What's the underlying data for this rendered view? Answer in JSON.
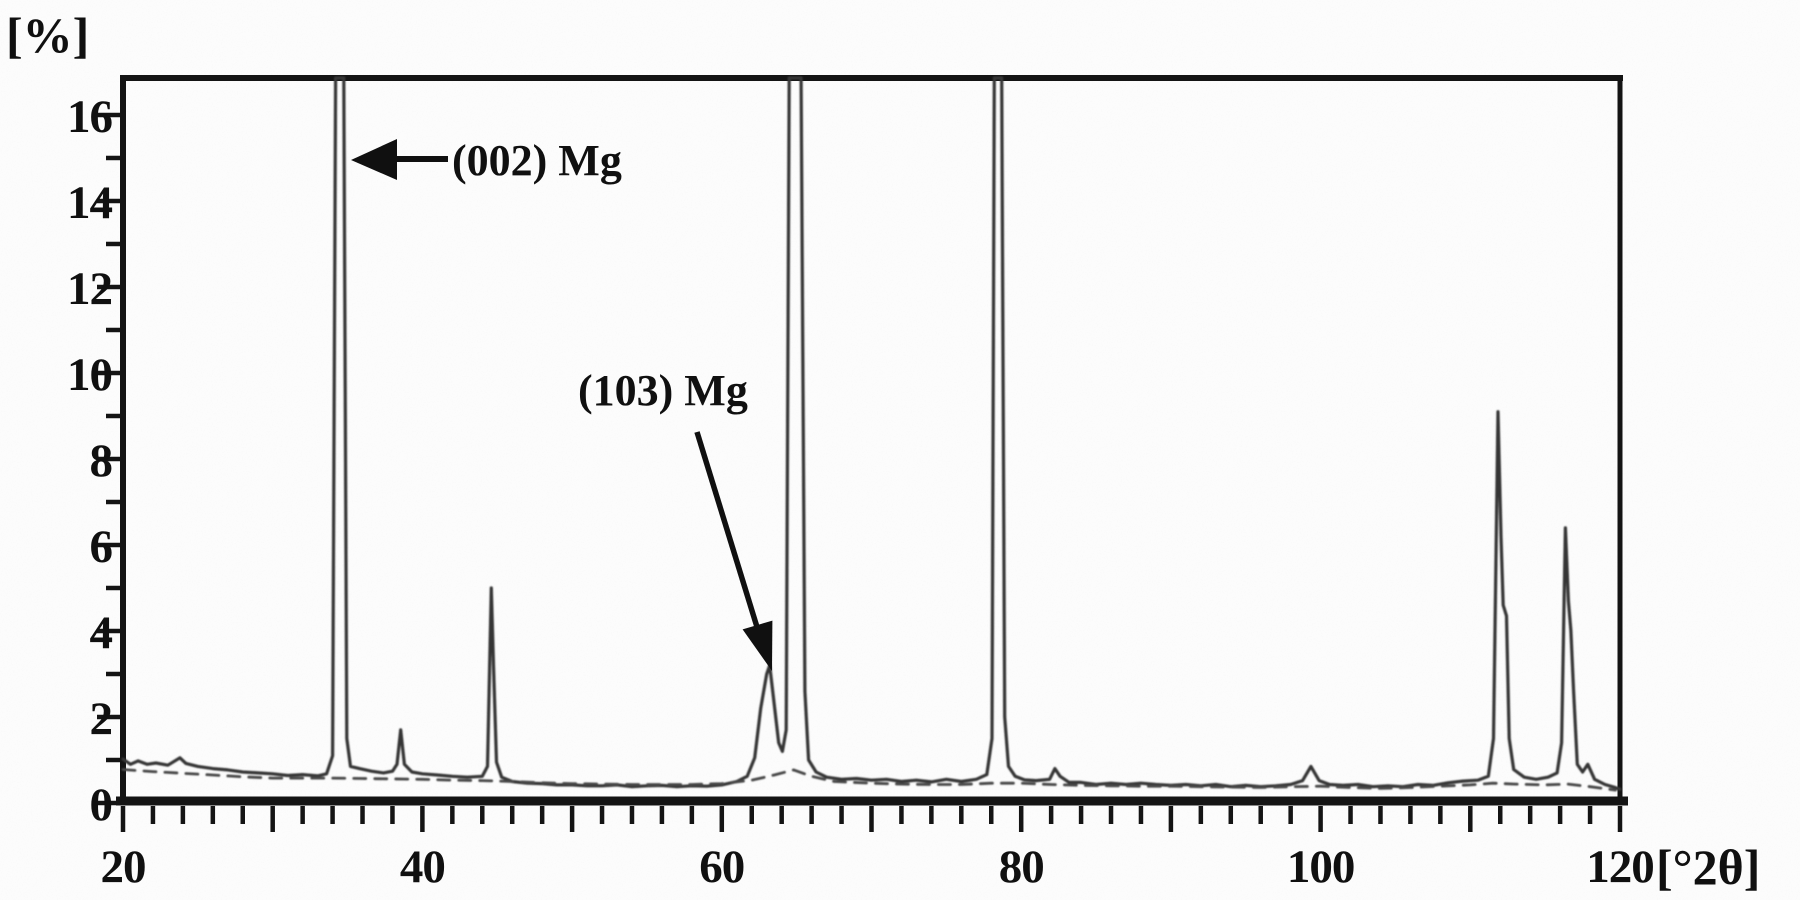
{
  "figure": {
    "y_unit_label": "[%]",
    "x_unit_label": "[°2θ]"
  },
  "chart_data": {
    "type": "line",
    "xlabel": "[°2θ]",
    "ylabel": "[%]",
    "xlim": [
      20,
      120
    ],
    "ylim": [
      0,
      16.86
    ],
    "grid": false,
    "legend": "none",
    "x_ticks_labeled": [
      20,
      40,
      60,
      80,
      100,
      120
    ],
    "x_minor_step": 2,
    "y_ticks_labeled": [
      0,
      2,
      4,
      6,
      8,
      10,
      12,
      14,
      16
    ],
    "y_minor_step": 1,
    "annotations": [
      {
        "label": "(002) Mg",
        "points_to_two_theta": 34.5
      },
      {
        "label": "(103) Mg",
        "points_to_two_theta": 63.1
      }
    ],
    "peaks": [
      {
        "two_theta": 34.5,
        "intensity_pct": 16.9,
        "clipped_at_top": true,
        "assignment": "(002) Mg"
      },
      {
        "two_theta": 38.6,
        "intensity_pct": 1.7
      },
      {
        "two_theta": 44.7,
        "intensity_pct": 5.0
      },
      {
        "two_theta": 63.1,
        "intensity_pct": 3.2,
        "assignment": "(103) Mg"
      },
      {
        "two_theta": 65.0,
        "intensity_pct": 16.9,
        "clipped_at_top": true
      },
      {
        "two_theta": 78.4,
        "intensity_pct": 16.9,
        "clipped_at_top": true
      },
      {
        "two_theta": 82.3,
        "intensity_pct": 0.8
      },
      {
        "two_theta": 99.4,
        "intensity_pct": 0.85
      },
      {
        "two_theta": 111.9,
        "intensity_pct": 9.1
      },
      {
        "two_theta": 116.4,
        "intensity_pct": 6.4
      }
    ],
    "series": [
      {
        "name": "diffraction-trace-solid",
        "color": "#343434",
        "width": 3.2,
        "dash": null,
        "points": [
          [
            20,
            1.02
          ],
          [
            20.5,
            0.9
          ],
          [
            21,
            0.98
          ],
          [
            21.6,
            0.9
          ],
          [
            22.2,
            0.93
          ],
          [
            23,
            0.88
          ],
          [
            23.8,
            1.05
          ],
          [
            24.2,
            0.92
          ],
          [
            25,
            0.85
          ],
          [
            26,
            0.8
          ],
          [
            27,
            0.77
          ],
          [
            28,
            0.72
          ],
          [
            29,
            0.7
          ],
          [
            30,
            0.68
          ],
          [
            31,
            0.64
          ],
          [
            32,
            0.66
          ],
          [
            33,
            0.63
          ],
          [
            33.6,
            0.68
          ],
          [
            34.0,
            1.1
          ],
          [
            34.2,
            17.5
          ],
          [
            34.75,
            17.5
          ],
          [
            34.95,
            1.5
          ],
          [
            35.2,
            0.85
          ],
          [
            35.8,
            0.8
          ],
          [
            36.6,
            0.74
          ],
          [
            37.4,
            0.7
          ],
          [
            38.0,
            0.74
          ],
          [
            38.3,
            0.9
          ],
          [
            38.55,
            1.7
          ],
          [
            38.8,
            0.9
          ],
          [
            39.3,
            0.72
          ],
          [
            40,
            0.68
          ],
          [
            41,
            0.65
          ],
          [
            42,
            0.62
          ],
          [
            43,
            0.6
          ],
          [
            44,
            0.62
          ],
          [
            44.35,
            0.85
          ],
          [
            44.6,
            5.0
          ],
          [
            44.75,
            3.2
          ],
          [
            44.95,
            0.95
          ],
          [
            45.3,
            0.6
          ],
          [
            46,
            0.5
          ],
          [
            47,
            0.46
          ],
          [
            48,
            0.45
          ],
          [
            49,
            0.42
          ],
          [
            50,
            0.42
          ],
          [
            51,
            0.4
          ],
          [
            52,
            0.4
          ],
          [
            53,
            0.42
          ],
          [
            54,
            0.38
          ],
          [
            55,
            0.4
          ],
          [
            56,
            0.41
          ],
          [
            57,
            0.38
          ],
          [
            58,
            0.4
          ],
          [
            59,
            0.39
          ],
          [
            60,
            0.42
          ],
          [
            61,
            0.5
          ],
          [
            61.7,
            0.62
          ],
          [
            62.2,
            1.05
          ],
          [
            62.6,
            2.2
          ],
          [
            63.0,
            3.0
          ],
          [
            63.2,
            3.2
          ],
          [
            63.5,
            2.3
          ],
          [
            63.8,
            1.4
          ],
          [
            64.05,
            1.2
          ],
          [
            64.3,
            1.7
          ],
          [
            64.5,
            17.5
          ],
          [
            65.3,
            17.5
          ],
          [
            65.55,
            2.6
          ],
          [
            65.8,
            1.0
          ],
          [
            66.3,
            0.72
          ],
          [
            67,
            0.6
          ],
          [
            68,
            0.55
          ],
          [
            69,
            0.57
          ],
          [
            70,
            0.53
          ],
          [
            71,
            0.55
          ],
          [
            72,
            0.5
          ],
          [
            73,
            0.53
          ],
          [
            74,
            0.49
          ],
          [
            75,
            0.55
          ],
          [
            76,
            0.5
          ],
          [
            77,
            0.55
          ],
          [
            77.7,
            0.66
          ],
          [
            78.05,
            1.5
          ],
          [
            78.2,
            17.5
          ],
          [
            78.7,
            17.5
          ],
          [
            78.9,
            2.0
          ],
          [
            79.15,
            0.85
          ],
          [
            79.6,
            0.62
          ],
          [
            80.2,
            0.54
          ],
          [
            81,
            0.52
          ],
          [
            81.9,
            0.55
          ],
          [
            82.25,
            0.8
          ],
          [
            82.6,
            0.62
          ],
          [
            83.2,
            0.48
          ],
          [
            84,
            0.48
          ],
          [
            85,
            0.43
          ],
          [
            86,
            0.46
          ],
          [
            87,
            0.43
          ],
          [
            88,
            0.46
          ],
          [
            89,
            0.43
          ],
          [
            90,
            0.41
          ],
          [
            91,
            0.43
          ],
          [
            92,
            0.4
          ],
          [
            93,
            0.43
          ],
          [
            94,
            0.38
          ],
          [
            95,
            0.41
          ],
          [
            96,
            0.38
          ],
          [
            97,
            0.4
          ],
          [
            98,
            0.43
          ],
          [
            98.8,
            0.52
          ],
          [
            99.35,
            0.85
          ],
          [
            99.9,
            0.52
          ],
          [
            100.6,
            0.43
          ],
          [
            101.5,
            0.41
          ],
          [
            102.5,
            0.43
          ],
          [
            103.5,
            0.38
          ],
          [
            104.5,
            0.4
          ],
          [
            105.5,
            0.38
          ],
          [
            106.5,
            0.43
          ],
          [
            107.5,
            0.41
          ],
          [
            108.5,
            0.47
          ],
          [
            109.5,
            0.51
          ],
          [
            110.5,
            0.53
          ],
          [
            111.2,
            0.62
          ],
          [
            111.55,
            1.5
          ],
          [
            111.85,
            9.1
          ],
          [
            112.05,
            6.2
          ],
          [
            112.2,
            4.6
          ],
          [
            112.42,
            4.35
          ],
          [
            112.6,
            1.5
          ],
          [
            112.9,
            0.78
          ],
          [
            113.6,
            0.6
          ],
          [
            114.4,
            0.55
          ],
          [
            115.2,
            0.6
          ],
          [
            115.8,
            0.7
          ],
          [
            116.1,
            1.4
          ],
          [
            116.35,
            6.4
          ],
          [
            116.55,
            4.7
          ],
          [
            116.72,
            4.0
          ],
          [
            116.9,
            2.6
          ],
          [
            117.15,
            0.9
          ],
          [
            117.5,
            0.72
          ],
          [
            117.85,
            0.9
          ],
          [
            118.3,
            0.55
          ],
          [
            119,
            0.43
          ],
          [
            119.6,
            0.37
          ],
          [
            120,
            0.32
          ]
        ]
      },
      {
        "name": "baseline-trace-dashed",
        "color": "#474747",
        "width": 2.8,
        "dash": "12 9",
        "points": [
          [
            20,
            0.78
          ],
          [
            22,
            0.73
          ],
          [
            24,
            0.69
          ],
          [
            26,
            0.65
          ],
          [
            28,
            0.61
          ],
          [
            30,
            0.58
          ],
          [
            32,
            0.58
          ],
          [
            34,
            0.58
          ],
          [
            36,
            0.57
          ],
          [
            38,
            0.56
          ],
          [
            40,
            0.55
          ],
          [
            42,
            0.53
          ],
          [
            44,
            0.52
          ],
          [
            46,
            0.5
          ],
          [
            48,
            0.47
          ],
          [
            50,
            0.45
          ],
          [
            52,
            0.44
          ],
          [
            54,
            0.43
          ],
          [
            56,
            0.43
          ],
          [
            58,
            0.43
          ],
          [
            60,
            0.45
          ],
          [
            62,
            0.53
          ],
          [
            63.5,
            0.65
          ],
          [
            64.8,
            0.77
          ],
          [
            66,
            0.62
          ],
          [
            67.5,
            0.5
          ],
          [
            70,
            0.46
          ],
          [
            72,
            0.44
          ],
          [
            74,
            0.43
          ],
          [
            76,
            0.43
          ],
          [
            78,
            0.46
          ],
          [
            80,
            0.46
          ],
          [
            82,
            0.43
          ],
          [
            84,
            0.41
          ],
          [
            86,
            0.4
          ],
          [
            88,
            0.39
          ],
          [
            90,
            0.39
          ],
          [
            92,
            0.38
          ],
          [
            94,
            0.37
          ],
          [
            96,
            0.36
          ],
          [
            98,
            0.38
          ],
          [
            100,
            0.39
          ],
          [
            102,
            0.36
          ],
          [
            104,
            0.34
          ],
          [
            106,
            0.36
          ],
          [
            108,
            0.39
          ],
          [
            110,
            0.42
          ],
          [
            111.5,
            0.46
          ],
          [
            113,
            0.44
          ],
          [
            115,
            0.42
          ],
          [
            116.5,
            0.44
          ],
          [
            118,
            0.38
          ],
          [
            119.7,
            0.3
          ]
        ]
      }
    ]
  }
}
